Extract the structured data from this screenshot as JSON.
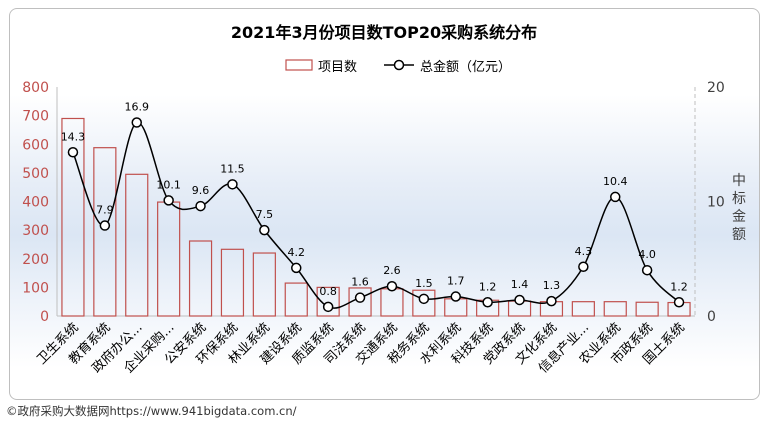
{
  "chart_data": {
    "type": "bar",
    "title": "2021年3月份项目数TOP20采购系统分布",
    "categories": [
      "卫生系统",
      "教育系统",
      "政府办公...",
      "企业采购...",
      "公安系统",
      "环保系统",
      "林业系统",
      "建设系统",
      "质监系统",
      "司法系统",
      "交通系统",
      "税务系统",
      "水利系统",
      "科技系统",
      "党政系统",
      "文化系统",
      "信息产业...",
      "农业系统",
      "市政系统",
      "国土系统"
    ],
    "series": [
      {
        "name": "项目数",
        "type": "bar",
        "axis": "left",
        "color": "#c0504d",
        "values": [
          690,
          588,
          495,
          398,
          262,
          233,
          220,
          115,
          100,
          98,
          95,
          90,
          60,
          55,
          52,
          50,
          50,
          50,
          48,
          47
        ]
      },
      {
        "name": "总金额（亿元）",
        "type": "line",
        "axis": "right",
        "color": "#000000",
        "values": [
          14.3,
          7.9,
          16.9,
          10.1,
          9.6,
          11.5,
          7.5,
          4.2,
          0.8,
          1.6,
          2.6,
          1.5,
          1.7,
          1.2,
          1.4,
          1.3,
          4.3,
          10.4,
          4.0,
          1.2
        ]
      }
    ],
    "data_labels": [
      "14.3",
      "7.9",
      "16.9",
      "10.1",
      "9.6",
      "11.5",
      "7.5",
      "4.2",
      "0.8",
      "1.6",
      "2.6",
      "1.5",
      "1.7",
      "1.2",
      "1.4",
      "1.3",
      "4.3",
      "10.4",
      "4.0",
      "1.2"
    ],
    "left_axis": {
      "ylim": [
        0,
        800
      ],
      "ticks": [
        "0",
        "100",
        "200",
        "300",
        "400",
        "500",
        "600",
        "700",
        "800"
      ]
    },
    "right_axis": {
      "ylim": [
        0,
        20
      ],
      "ticks": [
        "0",
        "10",
        "20"
      ],
      "label": "中标金额"
    },
    "legend": {
      "position": "top-center",
      "entries": [
        "项目数",
        "总金额（亿元）"
      ]
    },
    "grid": false
  },
  "footer": {
    "source": "©政府采购大数据网https://www.941bigdata.com.cn/"
  }
}
